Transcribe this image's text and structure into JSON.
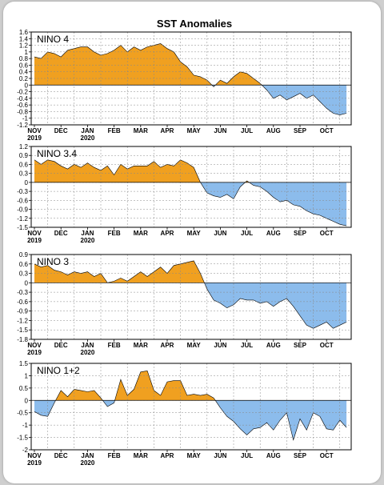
{
  "title": "SST Anomalies",
  "colors": {
    "warm": "#f0a020",
    "cool": "#8cbcec",
    "grid": "#888888"
  },
  "chart_data": [
    {
      "type": "area",
      "label": "NINO 4",
      "ylim": [
        -1.2,
        1.6
      ],
      "yticks": [
        "1.6",
        "1.4",
        "1.2",
        "1",
        "0.8",
        "0.6",
        "0.4",
        "0.2",
        "0",
        "-0.2",
        "-0.4",
        "-0.6",
        "-0.8",
        "-1",
        "-1.2"
      ],
      "grid": true,
      "points": [
        [
          0,
          0.85
        ],
        [
          0.25,
          0.8
        ],
        [
          0.5,
          1.0
        ],
        [
          0.75,
          0.95
        ],
        [
          1,
          0.85
        ],
        [
          1.25,
          1.05
        ],
        [
          1.5,
          1.1
        ],
        [
          1.75,
          1.15
        ],
        [
          2,
          1.15
        ],
        [
          2.25,
          1.0
        ],
        [
          2.5,
          0.9
        ],
        [
          2.75,
          0.95
        ],
        [
          3,
          1.05
        ],
        [
          3.25,
          1.2
        ],
        [
          3.5,
          1.0
        ],
        [
          3.75,
          1.15
        ],
        [
          4,
          1.05
        ],
        [
          4.25,
          1.15
        ],
        [
          4.5,
          1.2
        ],
        [
          4.75,
          1.25
        ],
        [
          5,
          1.1
        ],
        [
          5.25,
          1.0
        ],
        [
          5.5,
          0.7
        ],
        [
          5.75,
          0.55
        ],
        [
          6,
          0.3
        ],
        [
          6.25,
          0.25
        ],
        [
          6.5,
          0.15
        ],
        [
          6.75,
          -0.05
        ],
        [
          7,
          0.15
        ],
        [
          7.25,
          0.05
        ],
        [
          7.5,
          0.25
        ],
        [
          7.75,
          0.4
        ],
        [
          8,
          0.35
        ],
        [
          8.25,
          0.2
        ],
        [
          8.5,
          0.05
        ],
        [
          8.75,
          -0.15
        ],
        [
          9,
          -0.4
        ],
        [
          9.25,
          -0.3
        ],
        [
          9.5,
          -0.45
        ],
        [
          9.75,
          -0.35
        ],
        [
          10,
          -0.25
        ],
        [
          10.25,
          -0.4
        ],
        [
          10.5,
          -0.3
        ],
        [
          10.75,
          -0.5
        ],
        [
          11,
          -0.7
        ],
        [
          11.25,
          -0.85
        ],
        [
          11.5,
          -0.9
        ],
        [
          11.75,
          -0.85
        ]
      ]
    },
    {
      "type": "area",
      "label": "NINO 3.4",
      "ylim": [
        -1.5,
        1.2
      ],
      "yticks": [
        "1.2",
        "0.9",
        "0.6",
        "0.3",
        "0",
        "-0.3",
        "-0.6",
        "-0.9",
        "-1.2",
        "-1.5"
      ],
      "grid": true,
      "points": [
        [
          0,
          0.75
        ],
        [
          0.25,
          0.6
        ],
        [
          0.5,
          0.75
        ],
        [
          0.75,
          0.7
        ],
        [
          1,
          0.55
        ],
        [
          1.25,
          0.45
        ],
        [
          1.5,
          0.6
        ],
        [
          1.75,
          0.5
        ],
        [
          2,
          0.65
        ],
        [
          2.25,
          0.5
        ],
        [
          2.5,
          0.4
        ],
        [
          2.75,
          0.55
        ],
        [
          3,
          0.25
        ],
        [
          3.25,
          0.6
        ],
        [
          3.5,
          0.45
        ],
        [
          3.75,
          0.55
        ],
        [
          4,
          0.55
        ],
        [
          4.25,
          0.55
        ],
        [
          4.5,
          0.7
        ],
        [
          4.75,
          0.5
        ],
        [
          5,
          0.6
        ],
        [
          5.25,
          0.55
        ],
        [
          5.5,
          0.75
        ],
        [
          5.75,
          0.65
        ],
        [
          6,
          0.5
        ],
        [
          6.25,
          0.0
        ],
        [
          6.5,
          -0.35
        ],
        [
          6.75,
          -0.45
        ],
        [
          7,
          -0.5
        ],
        [
          7.25,
          -0.4
        ],
        [
          7.5,
          -0.55
        ],
        [
          7.75,
          -0.15
        ],
        [
          8,
          0.05
        ],
        [
          8.25,
          -0.1
        ],
        [
          8.5,
          -0.15
        ],
        [
          8.75,
          -0.3
        ],
        [
          9,
          -0.5
        ],
        [
          9.25,
          -0.65
        ],
        [
          9.5,
          -0.6
        ],
        [
          9.75,
          -0.75
        ],
        [
          10,
          -0.8
        ],
        [
          10.25,
          -0.95
        ],
        [
          10.5,
          -1.05
        ],
        [
          10.75,
          -1.1
        ],
        [
          11,
          -1.2
        ],
        [
          11.25,
          -1.3
        ],
        [
          11.5,
          -1.4
        ],
        [
          11.75,
          -1.45
        ]
      ]
    },
    {
      "type": "area",
      "label": "NINO 3",
      "ylim": [
        -1.8,
        0.9
      ],
      "yticks": [
        "0.9",
        "0.6",
        "0.3",
        "0",
        "-0.3",
        "-0.6",
        "-0.9",
        "-1.2",
        "-1.5",
        "-1.8"
      ],
      "grid": true,
      "points": [
        [
          0,
          0.6
        ],
        [
          0.25,
          0.5
        ],
        [
          0.5,
          0.55
        ],
        [
          0.75,
          0.4
        ],
        [
          1,
          0.35
        ],
        [
          1.25,
          0.25
        ],
        [
          1.5,
          0.35
        ],
        [
          1.75,
          0.3
        ],
        [
          2,
          0.35
        ],
        [
          2.25,
          0.2
        ],
        [
          2.5,
          0.3
        ],
        [
          2.75,
          0.0
        ],
        [
          3,
          0.05
        ],
        [
          3.25,
          0.15
        ],
        [
          3.5,
          0.05
        ],
        [
          3.75,
          0.2
        ],
        [
          4,
          0.35
        ],
        [
          4.25,
          0.2
        ],
        [
          4.5,
          0.35
        ],
        [
          4.75,
          0.5
        ],
        [
          5,
          0.3
        ],
        [
          5.25,
          0.55
        ],
        [
          5.5,
          0.6
        ],
        [
          5.75,
          0.65
        ],
        [
          6,
          0.7
        ],
        [
          6.25,
          0.3
        ],
        [
          6.5,
          -0.2
        ],
        [
          6.75,
          -0.55
        ],
        [
          7,
          -0.65
        ],
        [
          7.25,
          -0.8
        ],
        [
          7.5,
          -0.7
        ],
        [
          7.75,
          -0.5
        ],
        [
          8,
          -0.55
        ],
        [
          8.25,
          -0.55
        ],
        [
          8.5,
          -0.65
        ],
        [
          8.75,
          -0.6
        ],
        [
          9,
          -0.75
        ],
        [
          9.25,
          -0.6
        ],
        [
          9.5,
          -0.5
        ],
        [
          9.75,
          -0.75
        ],
        [
          10,
          -1.05
        ],
        [
          10.25,
          -1.35
        ],
        [
          10.5,
          -1.45
        ],
        [
          10.75,
          -1.35
        ],
        [
          11,
          -1.25
        ],
        [
          11.25,
          -1.45
        ],
        [
          11.5,
          -1.35
        ],
        [
          11.75,
          -1.25
        ]
      ]
    },
    {
      "type": "area",
      "label": "NINO 1+2",
      "ylim": [
        -2,
        1.5
      ],
      "yticks": [
        "1.5",
        "1",
        "0.5",
        "0",
        "-0.5",
        "-1",
        "-1.5",
        "-2"
      ],
      "grid": true,
      "points": [
        [
          0,
          -0.45
        ],
        [
          0.25,
          -0.6
        ],
        [
          0.5,
          -0.65
        ],
        [
          0.75,
          -0.1
        ],
        [
          1,
          0.4
        ],
        [
          1.25,
          0.15
        ],
        [
          1.5,
          0.45
        ],
        [
          1.75,
          0.4
        ],
        [
          2,
          0.35
        ],
        [
          2.25,
          0.4
        ],
        [
          2.5,
          0.1
        ],
        [
          2.75,
          -0.25
        ],
        [
          3,
          -0.1
        ],
        [
          3.25,
          0.85
        ],
        [
          3.5,
          0.2
        ],
        [
          3.75,
          0.45
        ],
        [
          4,
          1.15
        ],
        [
          4.25,
          1.2
        ],
        [
          4.5,
          0.4
        ],
        [
          4.75,
          0.2
        ],
        [
          5,
          0.75
        ],
        [
          5.25,
          0.8
        ],
        [
          5.5,
          0.8
        ],
        [
          5.75,
          0.2
        ],
        [
          6,
          0.25
        ],
        [
          6.25,
          0.2
        ],
        [
          6.5,
          0.25
        ],
        [
          6.75,
          0.1
        ],
        [
          7,
          -0.3
        ],
        [
          7.25,
          -0.65
        ],
        [
          7.5,
          -0.85
        ],
        [
          7.75,
          -1.15
        ],
        [
          8,
          -1.4
        ],
        [
          8.25,
          -1.15
        ],
        [
          8.5,
          -1.1
        ],
        [
          8.75,
          -0.9
        ],
        [
          9,
          -1.2
        ],
        [
          9.25,
          -0.8
        ],
        [
          9.5,
          -0.5
        ],
        [
          9.75,
          -1.6
        ],
        [
          10,
          -0.75
        ],
        [
          10.25,
          -1.2
        ],
        [
          10.5,
          -0.5
        ],
        [
          10.75,
          -0.65
        ],
        [
          11,
          -1.15
        ],
        [
          11.25,
          -1.2
        ],
        [
          11.5,
          -0.8
        ],
        [
          11.75,
          -1.1
        ]
      ]
    }
  ],
  "x_axis": {
    "months": [
      "NOV",
      "DEC",
      "JAN",
      "FEB",
      "MAR",
      "APR",
      "MAY",
      "JUN",
      "JUL",
      "AUG",
      "SEP",
      "OCT"
    ],
    "years": [
      {
        "month_index": 0,
        "label": "2019"
      },
      {
        "month_index": 2,
        "label": "2020"
      }
    ]
  }
}
